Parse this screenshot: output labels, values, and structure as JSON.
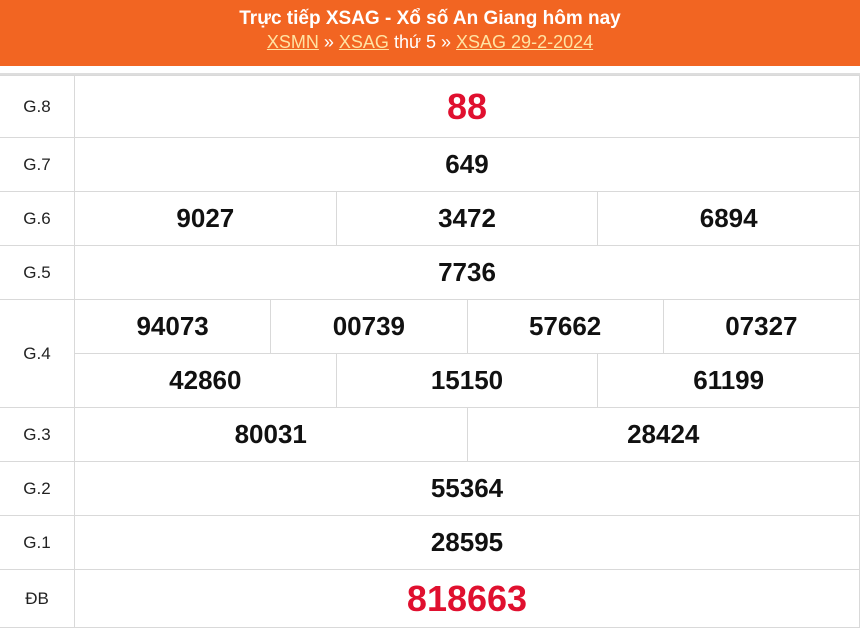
{
  "header": {
    "title": "Trực tiếp XSAG - Xổ số An Giang hôm nay",
    "breadcrumb": {
      "link1": "XSMN",
      "sep1": " » ",
      "link2": "XSAG",
      "text": " thứ 5 » ",
      "link3": "XSAG 29-2-2024"
    }
  },
  "colors": {
    "header": "#f26522",
    "special": "#e0102f"
  },
  "prizes": [
    {
      "label": "G.8",
      "numbers": [
        "88"
      ]
    },
    {
      "label": "G.7",
      "numbers": [
        "649"
      ]
    },
    {
      "label": "G.6",
      "numbers": [
        "9027",
        "3472",
        "6894"
      ]
    },
    {
      "label": "G.5",
      "numbers": [
        "7736"
      ]
    },
    {
      "label": "G.4",
      "numbers": [
        "94073",
        "00739",
        "57662",
        "07327"
      ],
      "numbers2": [
        "42860",
        "15150",
        "61199"
      ]
    },
    {
      "label": "G.3",
      "numbers": [
        "80031",
        "28424"
      ]
    },
    {
      "label": "G.2",
      "numbers": [
        "55364"
      ]
    },
    {
      "label": "G.1",
      "numbers": [
        "28595"
      ]
    },
    {
      "label": "ĐB",
      "numbers": [
        "818663"
      ]
    }
  ]
}
